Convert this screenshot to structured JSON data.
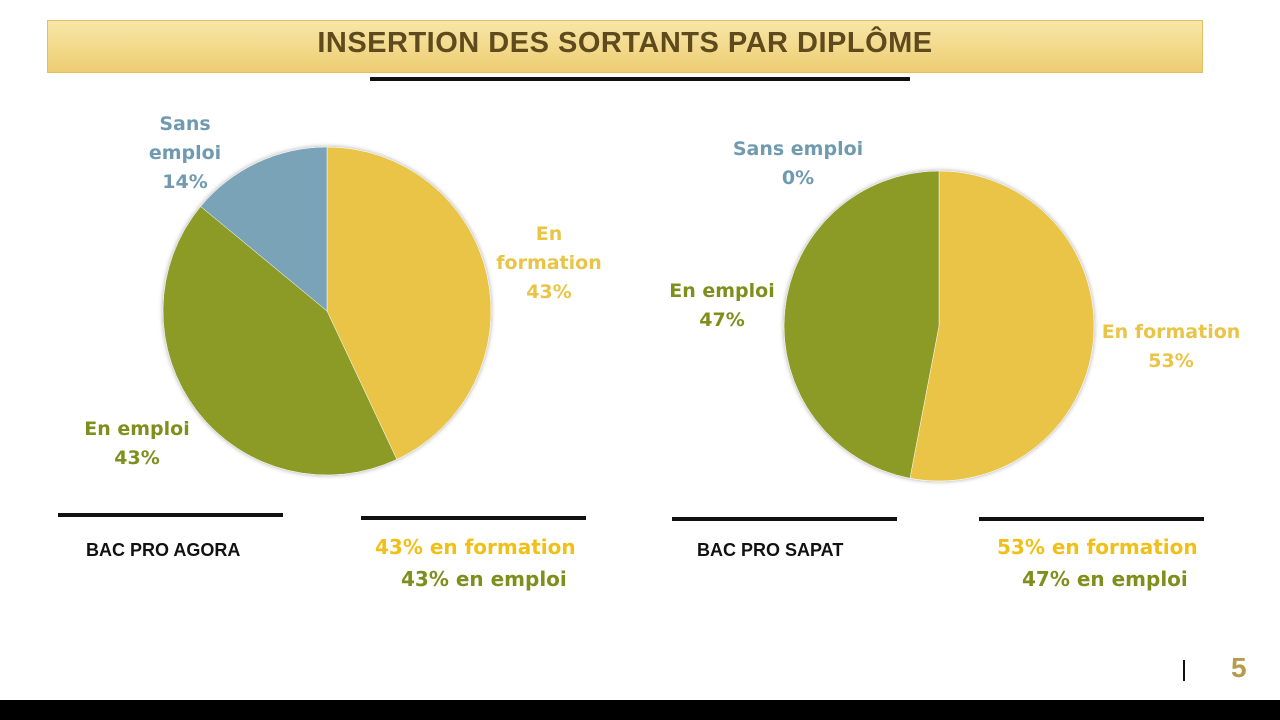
{
  "title": "INSERTION DES SORTANTS PAR DIPLÔME",
  "colors": {
    "formation": "#e9c447",
    "emploi": "#8c9a25",
    "sans_emploi": "#7aa3b8",
    "formation_text": "#f0c018",
    "emploi_text": "#7e8f1c",
    "sans_emploi_text": "#6f9ab0",
    "page_number": "#b89a4a"
  },
  "chart_data": [
    {
      "type": "pie",
      "diploma": "BAC PRO AGORA",
      "slices": [
        {
          "category": "formation",
          "label_line1": "En",
          "label_line2": "formation",
          "percent_label": "43%",
          "value": 43
        },
        {
          "category": "emploi",
          "label_line1": "En emploi",
          "percent_label": "43%",
          "value": 43
        },
        {
          "category": "sans_emploi",
          "label_line1": "Sans",
          "label_line2": "emploi",
          "percent_label": "14%",
          "value": 14
        }
      ],
      "summary": [
        "43% en formation",
        "43% en emploi"
      ]
    },
    {
      "type": "pie",
      "diploma": "BAC PRO SAPAT",
      "slices": [
        {
          "category": "formation",
          "label_line1": "En formation",
          "percent_label": "53%",
          "value": 53
        },
        {
          "category": "emploi",
          "label_line1": "En emploi",
          "percent_label": "47%",
          "value": 47
        },
        {
          "category": "sans_emploi",
          "label_line1": "Sans emploi",
          "percent_label": "0%",
          "value": 0
        }
      ],
      "summary": [
        "53% en formation",
        "47% en emploi"
      ]
    }
  ],
  "page_number": "5"
}
